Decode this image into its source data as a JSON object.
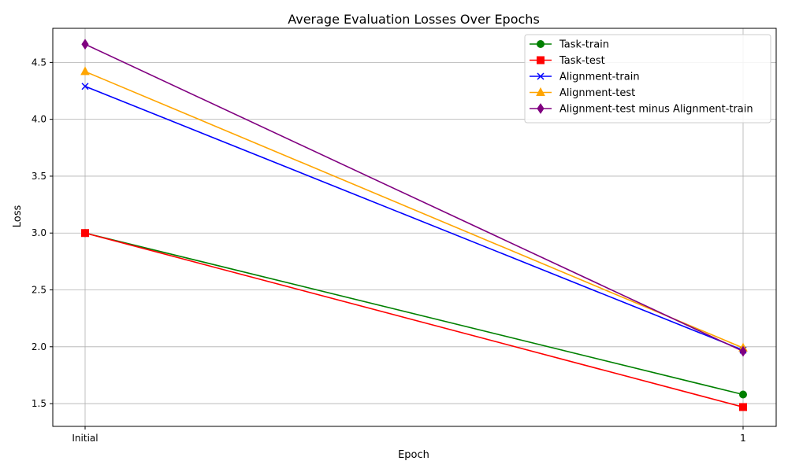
{
  "chart_data": {
    "type": "line",
    "title": "Average Evaluation Losses Over Epochs",
    "xlabel": "Epoch",
    "ylabel": "Loss",
    "categories": [
      "Initial",
      "1"
    ],
    "ylim": [
      1.3,
      4.8
    ],
    "yticks": [
      "1.5",
      "2.0",
      "2.5",
      "3.0",
      "3.5",
      "4.0",
      "4.5"
    ],
    "grid": true,
    "legend_position": "top-right",
    "series": [
      {
        "name": "Task-train",
        "values": [
          3.0,
          1.58
        ],
        "color": "#008000",
        "marker": "circle"
      },
      {
        "name": "Task-test",
        "values": [
          3.0,
          1.47
        ],
        "color": "#ff0000",
        "marker": "square"
      },
      {
        "name": "Alignment-train",
        "values": [
          4.29,
          1.97
        ],
        "color": "#0000ff",
        "marker": "x"
      },
      {
        "name": "Alignment-test",
        "values": [
          4.42,
          1.99
        ],
        "color": "#ffa500",
        "marker": "triangle"
      },
      {
        "name": "Alignment-test minus Alignment-train",
        "values": [
          4.66,
          1.96
        ],
        "color": "#800080",
        "marker": "diamond"
      }
    ]
  }
}
